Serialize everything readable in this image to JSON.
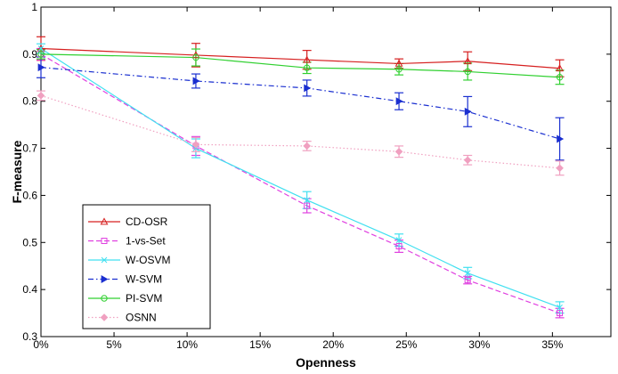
{
  "chart_data": {
    "type": "line",
    "xlabel": "Openness",
    "ylabel": "F-measure",
    "xlim": [
      0,
      39
    ],
    "ylim": [
      0.3,
      1.0
    ],
    "x_ticks": [
      0,
      5,
      10,
      15,
      20,
      25,
      30,
      35
    ],
    "x_tick_labels": [
      "0%",
      "5%",
      "10%",
      "15%",
      "20%",
      "25%",
      "30%",
      "35%"
    ],
    "y_ticks": [
      0.3,
      0.4,
      0.5,
      0.6,
      0.7,
      0.8,
      0.9,
      1.0
    ],
    "y_tick_labels": [
      "0.3",
      "0.4",
      "0.5",
      "0.6",
      "0.7",
      "0.8",
      "0.9",
      "1"
    ],
    "legend_position": "bottom-left",
    "x": [
      0,
      10.6,
      18.2,
      24.5,
      29.2,
      35.5
    ],
    "series": [
      {
        "name": "CD-OSR",
        "color": "#d62020",
        "dash": "solid",
        "marker": "triangle-up",
        "values": [
          0.912,
          0.898,
          0.888,
          0.88,
          0.885,
          0.87
        ],
        "errors": [
          0.025,
          0.025,
          0.02,
          0.01,
          0.02,
          0.018
        ]
      },
      {
        "name": "1-vs-Set",
        "color": "#e040e0",
        "dash": "dashed",
        "marker": "square",
        "values": [
          0.9,
          0.705,
          0.578,
          0.492,
          0.42,
          0.35
        ],
        "errors": [
          0.012,
          0.02,
          0.015,
          0.013,
          0.008,
          0.01
        ]
      },
      {
        "name": "W-OSVM",
        "color": "#40e0f0",
        "dash": "solid",
        "marker": "x",
        "values": [
          0.912,
          0.7,
          0.59,
          0.505,
          0.435,
          0.362
        ],
        "errors": [
          0.01,
          0.02,
          0.018,
          0.013,
          0.012,
          0.012
        ]
      },
      {
        "name": "W-SVM",
        "color": "#1a2fd0",
        "dash": "dashdot",
        "marker": "triangle-right",
        "values": [
          0.872,
          0.843,
          0.828,
          0.8,
          0.778,
          0.72
        ],
        "errors": [
          0.022,
          0.015,
          0.017,
          0.018,
          0.032,
          0.045
        ]
      },
      {
        "name": "PI-SVM",
        "color": "#30d030",
        "dash": "solid",
        "marker": "circle",
        "values": [
          0.9,
          0.893,
          0.871,
          0.868,
          0.863,
          0.851
        ],
        "errors": [
          0.01,
          0.018,
          0.012,
          0.012,
          0.018,
          0.015
        ]
      },
      {
        "name": "OSNN",
        "color": "#f0a0c0",
        "dash": "dotted",
        "marker": "diamond",
        "values": [
          0.812,
          0.708,
          0.705,
          0.693,
          0.675,
          0.658
        ],
        "errors": [
          0.01,
          0.015,
          0.01,
          0.012,
          0.01,
          0.015
        ]
      }
    ]
  }
}
